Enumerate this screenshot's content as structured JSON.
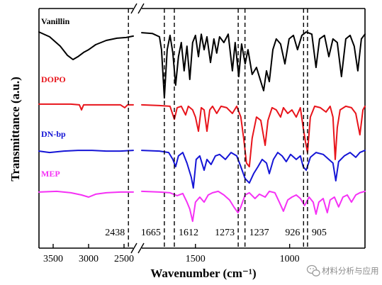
{
  "chart_data": {
    "type": "line",
    "title": "",
    "xlabel": "Wavenumber (cm⁻¹)",
    "ylabel": "Transmittance (a.u.)",
    "x_axis": {
      "reversed": true,
      "broken": true,
      "segments": [
        [
          3700,
          2370
        ],
        [
          1785,
          600
        ]
      ],
      "ticks": [
        3500,
        3000,
        2500,
        1500,
        1000
      ]
    },
    "y_axis": {
      "range": [
        0,
        100
      ],
      "ticks": false
    },
    "grid": false,
    "legend": "inline labels at left above each curve",
    "reference_lines": [
      {
        "x": 2438,
        "label": "2438"
      },
      {
        "x": 1665,
        "label": "1665"
      },
      {
        "x": 1612,
        "label": "1612"
      },
      {
        "x": 1273,
        "label": "1273"
      },
      {
        "x": 1237,
        "label": "1237"
      },
      {
        "x": 926,
        "label": "926"
      },
      {
        "x": 905,
        "label": "905"
      }
    ],
    "series": [
      {
        "name": "Vanillin",
        "color": "#000000",
        "points": [
          [
            3700,
            90.2
          ],
          [
            3550,
            88.2
          ],
          [
            3400,
            84.3
          ],
          [
            3300,
            80.5
          ],
          [
            3220,
            78.7
          ],
          [
            3150,
            79.9
          ],
          [
            3070,
            81.7
          ],
          [
            3000,
            82.8
          ],
          [
            2900,
            84.9
          ],
          [
            2750,
            86.7
          ],
          [
            2600,
            87.6
          ],
          [
            2470,
            87.9
          ],
          [
            2370,
            88.5
          ],
          [
            1785,
            89.9
          ],
          [
            1729,
            89.6
          ],
          [
            1691,
            88.2
          ],
          [
            1680,
            82.8
          ],
          [
            1665,
            62.7
          ],
          [
            1650,
            82.8
          ],
          [
            1635,
            88.8
          ],
          [
            1620,
            81.4
          ],
          [
            1605,
            68.0
          ],
          [
            1590,
            79.9
          ],
          [
            1575,
            85.8
          ],
          [
            1560,
            74.0
          ],
          [
            1545,
            84.3
          ],
          [
            1530,
            70.4
          ],
          [
            1515,
            85.8
          ],
          [
            1500,
            88.8
          ],
          [
            1484,
            79.9
          ],
          [
            1469,
            89.3
          ],
          [
            1454,
            82.8
          ],
          [
            1439,
            88.2
          ],
          [
            1420,
            77.5
          ],
          [
            1402,
            87.3
          ],
          [
            1387,
            81.4
          ],
          [
            1372,
            88.2
          ],
          [
            1349,
            85.8
          ],
          [
            1326,
            89.3
          ],
          [
            1304,
            74.0
          ],
          [
            1289,
            85.8
          ],
          [
            1270,
            71.6
          ],
          [
            1255,
            85.2
          ],
          [
            1236,
            76.9
          ],
          [
            1221,
            82.8
          ],
          [
            1199,
            72.5
          ],
          [
            1176,
            75.4
          ],
          [
            1153,
            69.5
          ],
          [
            1138,
            65.7
          ],
          [
            1123,
            74.0
          ],
          [
            1108,
            69.5
          ],
          [
            1089,
            82.8
          ],
          [
            1071,
            87.3
          ],
          [
            1048,
            85.2
          ],
          [
            1025,
            76.9
          ],
          [
            1003,
            87.3
          ],
          [
            980,
            88.8
          ],
          [
            958,
            82.8
          ],
          [
            935,
            88.8
          ],
          [
            912,
            90.2
          ],
          [
            882,
            89.3
          ],
          [
            860,
            75.4
          ],
          [
            841,
            87.3
          ],
          [
            815,
            88.8
          ],
          [
            792,
            79.9
          ],
          [
            770,
            87.3
          ],
          [
            747,
            85.8
          ],
          [
            725,
            71.6
          ],
          [
            702,
            87.3
          ],
          [
            679,
            88.8
          ],
          [
            657,
            84.3
          ],
          [
            638,
            74.0
          ],
          [
            619,
            87.3
          ],
          [
            600,
            89.3
          ]
        ]
      },
      {
        "name": "DOPO",
        "color": "#e8141b",
        "points": [
          [
            3700,
            60.1
          ],
          [
            3450,
            60.1
          ],
          [
            3250,
            60.1
          ],
          [
            3130,
            59.8
          ],
          [
            3100,
            57.7
          ],
          [
            3070,
            59.8
          ],
          [
            2850,
            59.8
          ],
          [
            2550,
            59.8
          ],
          [
            2490,
            58.6
          ],
          [
            2450,
            59.8
          ],
          [
            2370,
            59.8
          ],
          [
            1785,
            59.8
          ],
          [
            1691,
            59.5
          ],
          [
            1635,
            59.2
          ],
          [
            1612,
            53.8
          ],
          [
            1597,
            58.6
          ],
          [
            1575,
            59.2
          ],
          [
            1552,
            55.6
          ],
          [
            1538,
            59.2
          ],
          [
            1515,
            57.7
          ],
          [
            1500,
            54.7
          ],
          [
            1484,
            48.8
          ],
          [
            1469,
            58.6
          ],
          [
            1454,
            57.7
          ],
          [
            1439,
            48.8
          ],
          [
            1424,
            57.7
          ],
          [
            1409,
            59.2
          ],
          [
            1387,
            56.2
          ],
          [
            1364,
            59.2
          ],
          [
            1334,
            58.6
          ],
          [
            1304,
            56.2
          ],
          [
            1281,
            59.2
          ],
          [
            1259,
            54.7
          ],
          [
            1244,
            45.9
          ],
          [
            1229,
            35.5
          ],
          [
            1214,
            34.0
          ],
          [
            1199,
            45.9
          ],
          [
            1176,
            54.7
          ],
          [
            1153,
            53.3
          ],
          [
            1130,
            42.9
          ],
          [
            1115,
            53.3
          ],
          [
            1093,
            58.6
          ],
          [
            1071,
            57.7
          ],
          [
            1048,
            54.7
          ],
          [
            1033,
            58.6
          ],
          [
            1010,
            56.2
          ],
          [
            988,
            57.7
          ],
          [
            965,
            54.7
          ],
          [
            943,
            58.6
          ],
          [
            928,
            50.3
          ],
          [
            916,
            44.4
          ],
          [
            905,
            39.9
          ],
          [
            890,
            54.7
          ],
          [
            867,
            59.2
          ],
          [
            837,
            58.6
          ],
          [
            807,
            56.8
          ],
          [
            785,
            59.2
          ],
          [
            770,
            54.7
          ],
          [
            758,
            37.0
          ],
          [
            747,
            50.3
          ],
          [
            732,
            57.7
          ],
          [
            702,
            59.2
          ],
          [
            672,
            58.6
          ],
          [
            649,
            56.2
          ],
          [
            627,
            47.3
          ],
          [
            611,
            57.7
          ],
          [
            600,
            59.2
          ]
        ]
      },
      {
        "name": "DN-bp",
        "color": "#1515d6",
        "points": [
          [
            3700,
            40.5
          ],
          [
            3550,
            39.9
          ],
          [
            3350,
            40.5
          ],
          [
            3150,
            40.8
          ],
          [
            2950,
            40.8
          ],
          [
            2750,
            40.5
          ],
          [
            2550,
            40.5
          ],
          [
            2370,
            40.8
          ],
          [
            1785,
            40.8
          ],
          [
            1691,
            40.5
          ],
          [
            1642,
            39.9
          ],
          [
            1620,
            37.0
          ],
          [
            1605,
            34.0
          ],
          [
            1590,
            38.5
          ],
          [
            1567,
            39.9
          ],
          [
            1545,
            35.5
          ],
          [
            1522,
            29.6
          ],
          [
            1511,
            25.1
          ],
          [
            1496,
            37.0
          ],
          [
            1477,
            38.5
          ],
          [
            1454,
            32.5
          ],
          [
            1439,
            37.0
          ],
          [
            1417,
            34.9
          ],
          [
            1394,
            38.5
          ],
          [
            1372,
            39.1
          ],
          [
            1341,
            37.0
          ],
          [
            1311,
            39.9
          ],
          [
            1281,
            38.5
          ],
          [
            1259,
            34.0
          ],
          [
            1236,
            29.0
          ],
          [
            1214,
            27.2
          ],
          [
            1191,
            31.1
          ],
          [
            1168,
            34.0
          ],
          [
            1146,
            37.0
          ],
          [
            1123,
            35.5
          ],
          [
            1108,
            31.1
          ],
          [
            1086,
            37.0
          ],
          [
            1063,
            39.9
          ],
          [
            1040,
            38.5
          ],
          [
            1018,
            36.1
          ],
          [
            995,
            39.1
          ],
          [
            965,
            37.0
          ],
          [
            943,
            38.5
          ],
          [
            928,
            34.0
          ],
          [
            912,
            32.5
          ],
          [
            890,
            37.9
          ],
          [
            860,
            39.9
          ],
          [
            822,
            39.1
          ],
          [
            792,
            37.0
          ],
          [
            770,
            35.5
          ],
          [
            755,
            28.1
          ],
          [
            740,
            36.1
          ],
          [
            710,
            38.5
          ],
          [
            679,
            39.9
          ],
          [
            649,
            37.9
          ],
          [
            627,
            39.9
          ],
          [
            600,
            40.8
          ]
        ]
      },
      {
        "name": "MEP",
        "color": "#f531f5",
        "points": [
          [
            3700,
            23.4
          ],
          [
            3450,
            23.7
          ],
          [
            3250,
            23.1
          ],
          [
            3100,
            22.2
          ],
          [
            3000,
            21.3
          ],
          [
            2900,
            22.5
          ],
          [
            2750,
            23.1
          ],
          [
            2550,
            23.4
          ],
          [
            2370,
            23.4
          ],
          [
            1785,
            23.7
          ],
          [
            1691,
            23.4
          ],
          [
            1635,
            23.1
          ],
          [
            1597,
            21.9
          ],
          [
            1567,
            22.8
          ],
          [
            1545,
            19.2
          ],
          [
            1530,
            16.3
          ],
          [
            1515,
            11.2
          ],
          [
            1500,
            19.2
          ],
          [
            1477,
            21.3
          ],
          [
            1454,
            19.2
          ],
          [
            1432,
            22.2
          ],
          [
            1409,
            23.1
          ],
          [
            1379,
            23.7
          ],
          [
            1349,
            22.2
          ],
          [
            1319,
            20.1
          ],
          [
            1296,
            17.2
          ],
          [
            1274,
            14.8
          ],
          [
            1259,
            17.2
          ],
          [
            1236,
            22.2
          ],
          [
            1214,
            23.1
          ],
          [
            1184,
            20.7
          ],
          [
            1161,
            22.5
          ],
          [
            1130,
            21.3
          ],
          [
            1108,
            23.7
          ],
          [
            1078,
            23.1
          ],
          [
            1055,
            19.2
          ],
          [
            1033,
            15.4
          ],
          [
            1010,
            20.1
          ],
          [
            988,
            21.3
          ],
          [
            965,
            22.2
          ],
          [
            943,
            20.7
          ],
          [
            920,
            17.8
          ],
          [
            897,
            21.3
          ],
          [
            875,
            19.2
          ],
          [
            860,
            14.2
          ],
          [
            845,
            19.2
          ],
          [
            822,
            20.7
          ],
          [
            800,
            14.8
          ],
          [
            785,
            20.1
          ],
          [
            762,
            21.3
          ],
          [
            740,
            17.2
          ],
          [
            717,
            21.3
          ],
          [
            694,
            22.2
          ],
          [
            672,
            19.2
          ],
          [
            649,
            22.2
          ],
          [
            627,
            23.1
          ],
          [
            600,
            23.7
          ]
        ]
      }
    ]
  },
  "watermark": {
    "text": "材料分析与应用",
    "icon": "wechat-icon",
    "color": "#8c8c8c"
  }
}
